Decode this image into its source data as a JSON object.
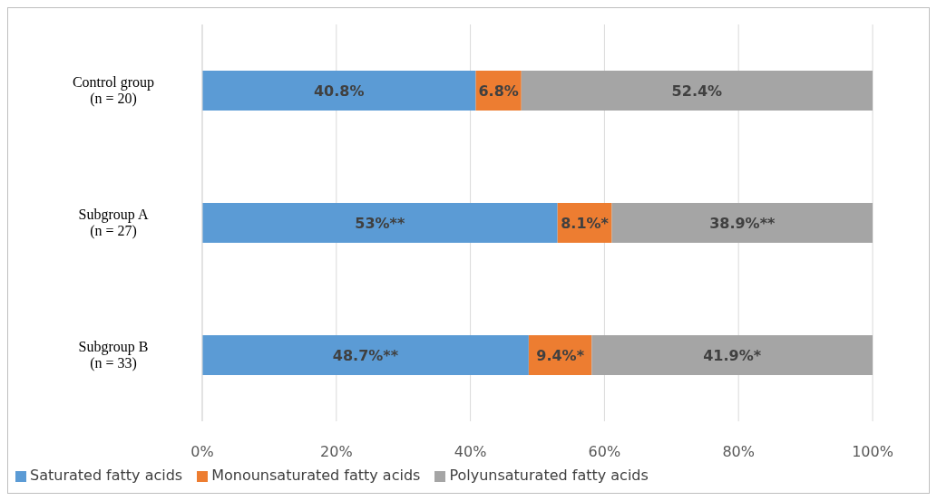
{
  "chart_data": {
    "type": "bar",
    "orientation": "horizontal",
    "stacked": true,
    "categories": [
      "Control group\n(n = 20)",
      "Subgroup A\n(n = 27)",
      "Subgroup B\n(n = 33)"
    ],
    "series": [
      {
        "name": "Saturated fatty acids",
        "color": "#5b9bd5",
        "values": [
          40.8,
          53,
          48.7
        ],
        "value_labels": [
          "40.8%",
          "53%**",
          "48.7%**"
        ]
      },
      {
        "name": "Monounsaturated fatty acids",
        "color": "#ed7d31",
        "values": [
          6.8,
          8.1,
          9.4
        ],
        "value_labels": [
          "6.8%",
          "8.1%*",
          "9.4%*"
        ]
      },
      {
        "name": "Polyunsaturated fatty acids",
        "color": "#a5a5a5",
        "values": [
          52.4,
          38.9,
          41.9
        ],
        "value_labels": [
          "52.4%",
          "38.9%**",
          "41.9%*"
        ]
      }
    ],
    "xlim": [
      0,
      100
    ],
    "xticks": [
      {
        "value": 0,
        "label": "0%"
      },
      {
        "value": 20,
        "label": "20%"
      },
      {
        "value": 40,
        "label": "40%"
      },
      {
        "value": 60,
        "label": "60%"
      },
      {
        "value": 80,
        "label": "80%"
      },
      {
        "value": 100,
        "label": "100%"
      }
    ],
    "grid": "x",
    "legend": "bottom"
  }
}
